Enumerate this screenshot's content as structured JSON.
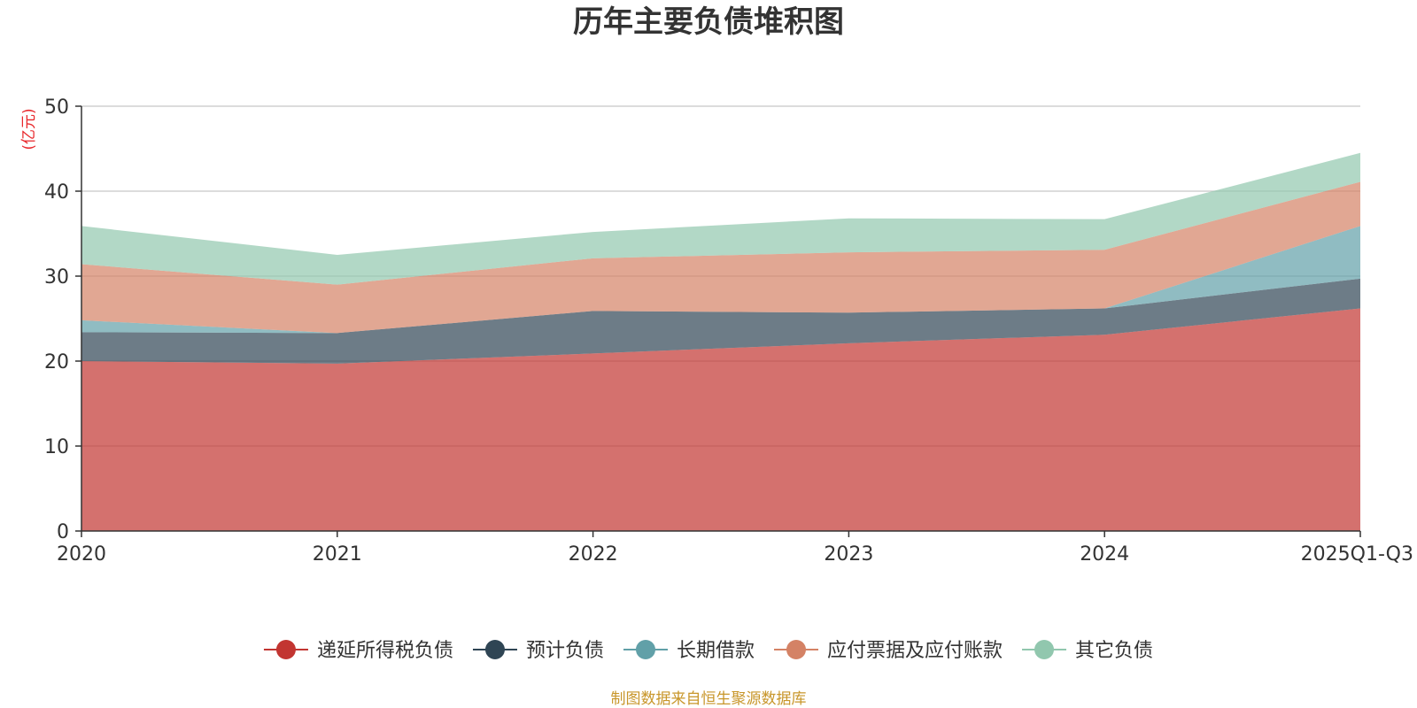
{
  "chart_data": {
    "type": "area",
    "stacked": true,
    "title": "历年主要负债堆积图",
    "unit_label": "(亿元)",
    "categories": [
      "2020",
      "2021",
      "2022",
      "2023",
      "2024",
      "2025Q1-Q3"
    ],
    "ylim": [
      0,
      50
    ],
    "yticks": [
      0,
      10,
      20,
      30,
      40,
      50
    ],
    "grid": true,
    "legend_position": "bottom",
    "series": [
      {
        "name": "递延所得税负债",
        "color": "#c23531",
        "values": [
          20.0,
          19.7,
          20.9,
          22.1,
          23.1,
          26.2
        ]
      },
      {
        "name": "预计负债",
        "color": "#2f4554",
        "values": [
          3.4,
          3.6,
          5.0,
          3.6,
          3.1,
          3.5
        ]
      },
      {
        "name": "长期借款",
        "color": "#61a0a8",
        "values": [
          1.4,
          0.0,
          0.0,
          0.0,
          0.0,
          6.2
        ]
      },
      {
        "name": "应付票据及应付账款",
        "color": "#d48265",
        "values": [
          6.6,
          5.7,
          6.2,
          7.1,
          6.9,
          5.2
        ]
      },
      {
        "name": "其它负债",
        "color": "#91c7ae",
        "values": [
          4.5,
          3.5,
          3.1,
          4.0,
          3.6,
          3.4
        ]
      }
    ],
    "source_note": "制图数据来自恒生聚源数据库"
  }
}
